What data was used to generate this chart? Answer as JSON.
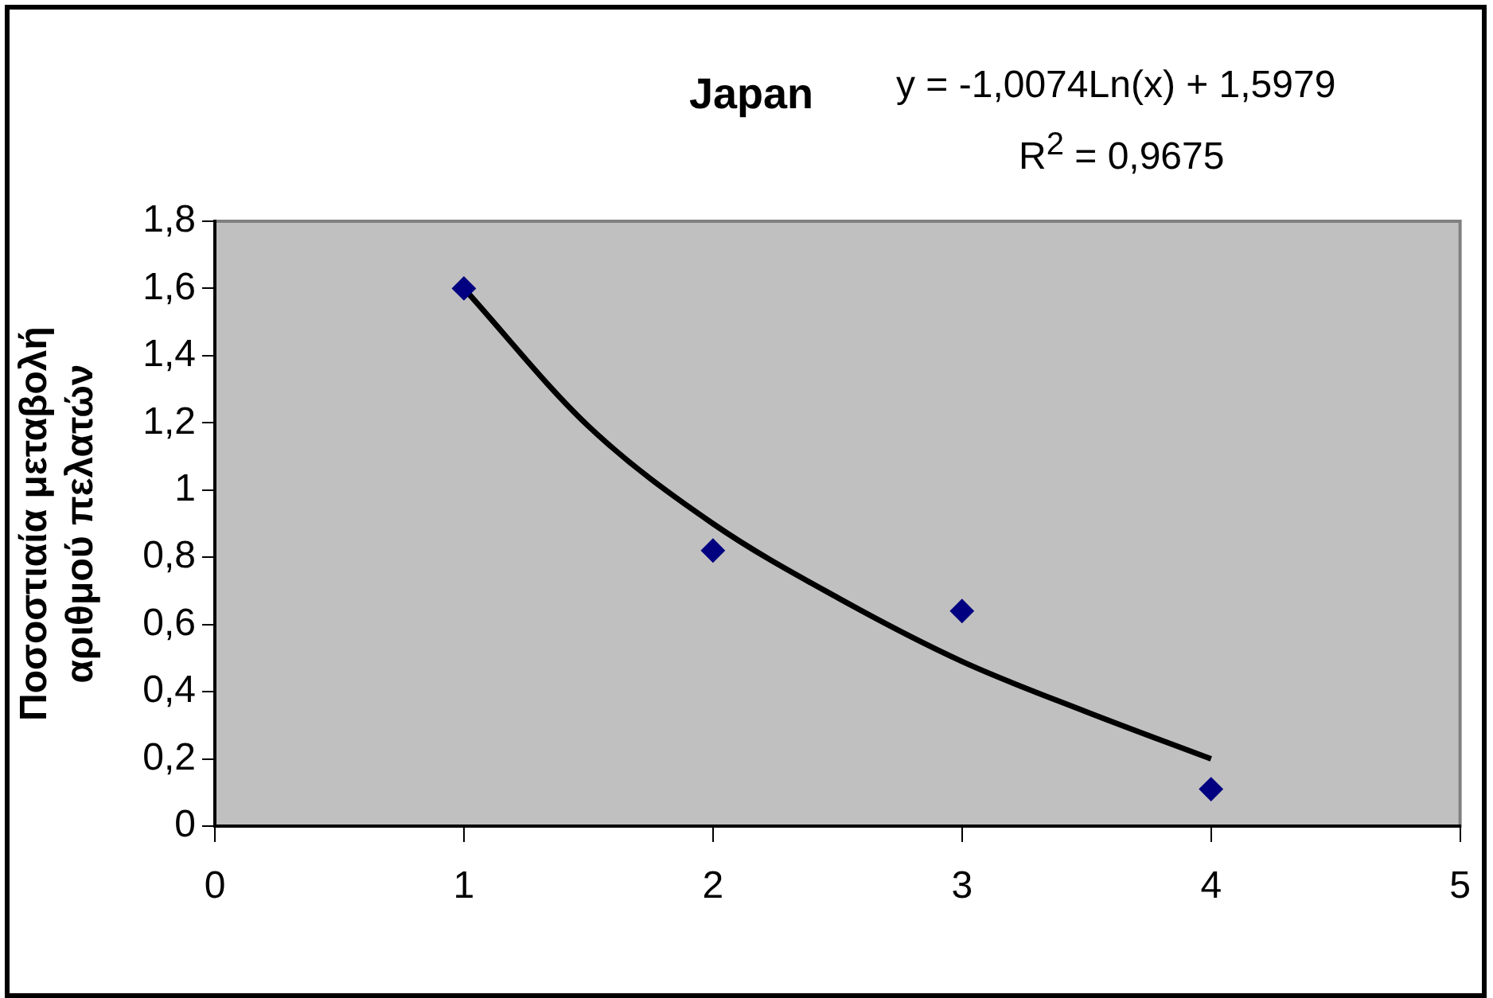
{
  "chart_data": {
    "type": "scatter",
    "title": "Japan",
    "ylabel": "Ποσοστιαία μεταβολή αριθμού πελατών",
    "annotations": [
      "y = -1,0074Ln(x) + 1,5979",
      "R$^{2}$ = 0,9675"
    ],
    "series": [
      {
        "color": "#000080",
        "x": [
          1,
          2,
          3,
          4
        ],
        "values": [
          1.6,
          0.82,
          0.64,
          0.11
        ],
        "marker": "diamond"
      },
      {
        "type": "line",
        "color": "#000000",
        "x": [
          1,
          1.5,
          2,
          2.5,
          3,
          3.5,
          4
        ],
        "values": [
          1.6,
          1.19,
          0.9,
          0.68,
          0.49,
          0.34,
          0.2
        ],
        "marker": "none",
        "line_style": "solid"
      }
    ],
    "xlim": [
      0,
      5
    ],
    "xticks": [
      0,
      1,
      2,
      3,
      4,
      5
    ],
    "ylim": [
      0,
      1.8
    ],
    "yticks": [
      0,
      {
        "value": 0.2,
        "label": "0,2"
      },
      {
        "value": 0.4,
        "label": "0,4"
      },
      {
        "value": 0.6,
        "label": "0,6"
      },
      {
        "value": 0.8,
        "label": "0,8"
      },
      1,
      {
        "value": 1.2,
        "label": "1,2"
      },
      {
        "value": 1.4,
        "label": "1,4"
      },
      {
        "value": 1.6,
        "label": "1,6"
      },
      {
        "value": 1.8,
        "label": "1,8"
      }
    ],
    "grid": false,
    "legend": false
  }
}
